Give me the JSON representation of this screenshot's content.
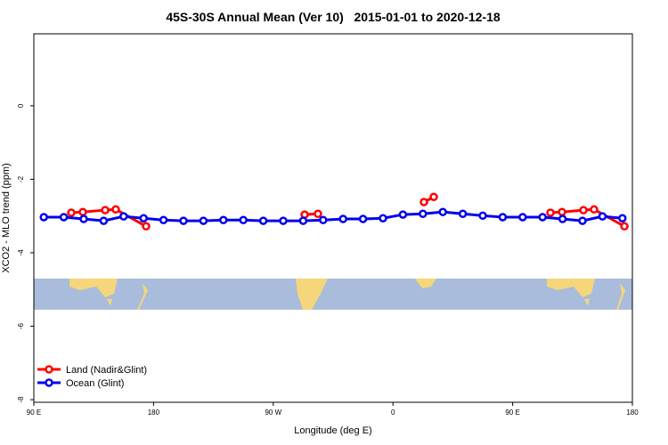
{
  "chart_data": {
    "type": "line",
    "title": "45S-30S Annual Mean (Ver 10)   2015-01-01 to 2020-12-18",
    "xlabel": "Longitude (deg E)",
    "ylabel": "XCO2 - MLO trend (ppm)",
    "xlim": [
      90,
      540
    ],
    "xticks": [
      {
        "value": 90,
        "label": "90 E"
      },
      {
        "value": 180,
        "label": "180"
      },
      {
        "value": 270,
        "label": "90 W"
      },
      {
        "value": 360,
        "label": "0"
      },
      {
        "value": 450,
        "label": "90 E"
      },
      {
        "value": 540,
        "label": "180"
      }
    ],
    "ylim": [
      -8.07,
      1.96
    ],
    "yticks": [
      -8,
      -6,
      -4,
      -2,
      0
    ],
    "legend": "bottom-left",
    "series": [
      {
        "name": "Land (Nadir&Glint)",
        "color": "#ff0000",
        "x": [
          118.1,
          126.8,
          143.6,
          151.6,
          174.4,
          null,
          293.6,
          303.6,
          null,
          383.3,
          390.7,
          null,
          478.4,
          487.1,
          503.2,
          511.2,
          534
        ],
        "values": [
          -2.91,
          -2.89,
          -2.84,
          -2.82,
          -3.28,
          null,
          -2.96,
          -2.94,
          null,
          -2.62,
          -2.48,
          null,
          -2.91,
          -2.89,
          -2.84,
          -2.82,
          -3.28
        ]
      },
      {
        "name": "Ocean (Glint)",
        "color": "#0000ee",
        "x": [
          97.5,
          112.5,
          127.5,
          142.5,
          157.5,
          172.5,
          187.5,
          202.5,
          217.5,
          232.5,
          247.5,
          262.5,
          277.5,
          292.5,
          307.5,
          322.5,
          337.5,
          352.5,
          367.5,
          382.5,
          397.5,
          412.5,
          427.5,
          442.5,
          457.5,
          472.5,
          487.5,
          502.5,
          517.5,
          532.5
        ],
        "values": [
          -3.03,
          -3.03,
          -3.08,
          -3.13,
          -3.01,
          -3.06,
          -3.11,
          -3.13,
          -3.13,
          -3.11,
          -3.11,
          -3.13,
          -3.13,
          -3.13,
          -3.11,
          -3.08,
          -3.08,
          -3.06,
          -2.96,
          -2.94,
          -2.89,
          -2.94,
          -2.99,
          -3.03,
          -3.03,
          -3.03,
          -3.08,
          -3.13,
          -3.01,
          -3.06
        ]
      }
    ]
  }
}
